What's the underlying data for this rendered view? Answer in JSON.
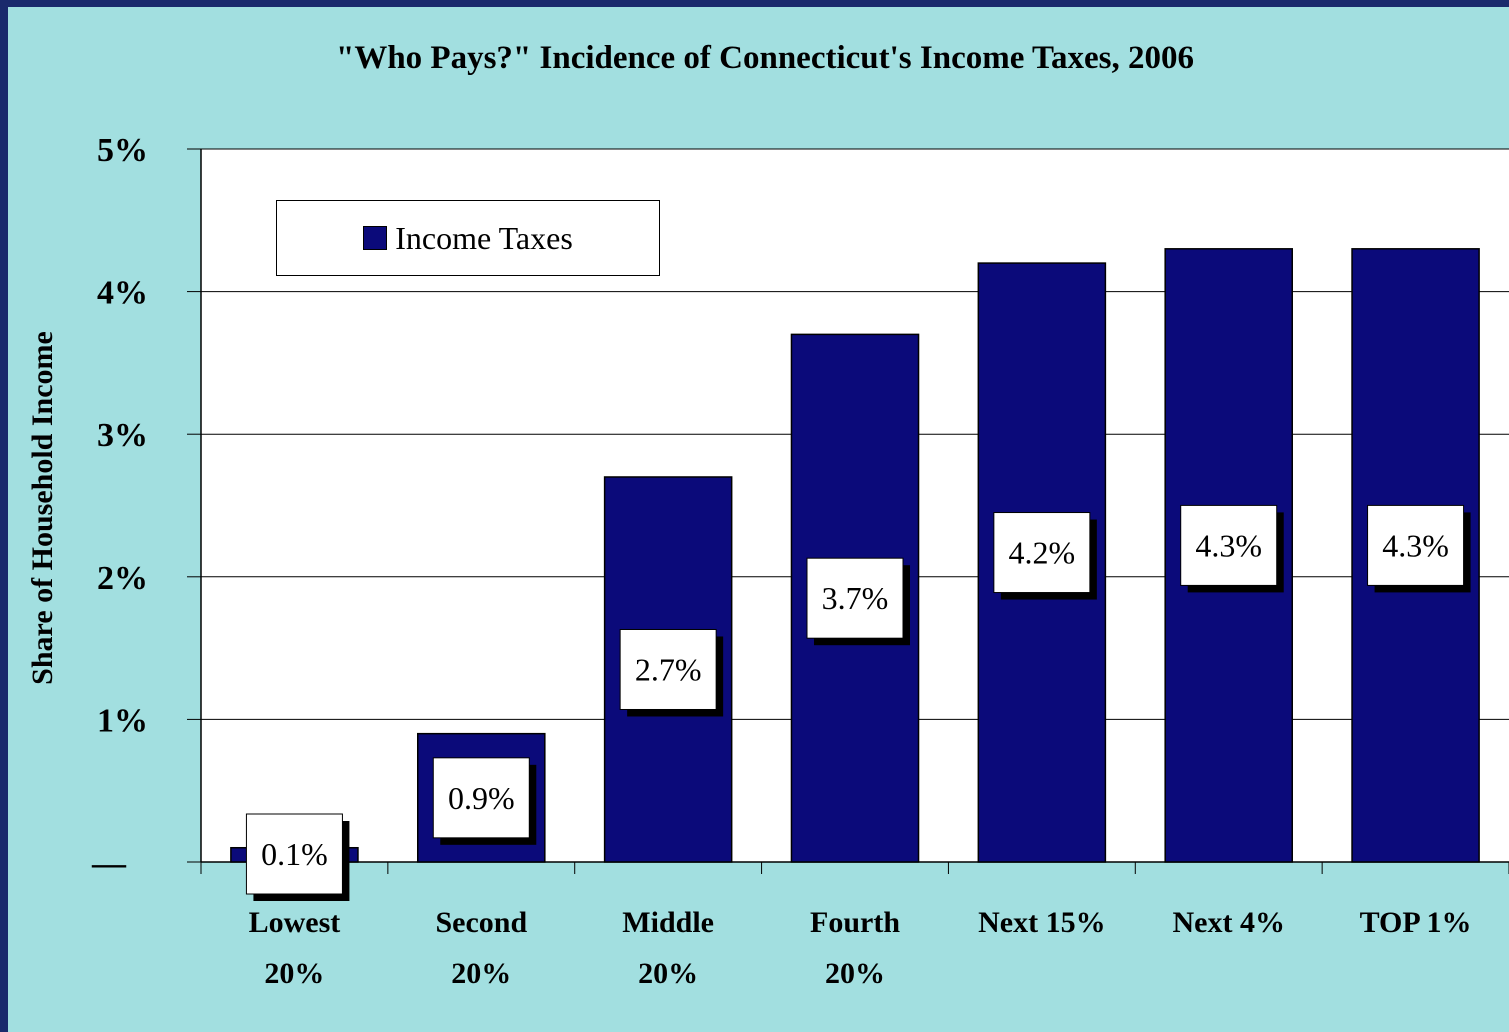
{
  "chart_data": {
    "type": "bar",
    "title": "\"Who Pays?\" Incidence of Connecticut's Income Taxes, 2006",
    "ylabel": "Share of Household Income",
    "xlabel": "",
    "categories": [
      [
        "Lowest",
        "20%"
      ],
      [
        "Second",
        "20%"
      ],
      [
        "Middle",
        "20%"
      ],
      [
        "Fourth",
        "20%"
      ],
      [
        "Next 15%"
      ],
      [
        "Next 4%"
      ],
      [
        "TOP 1%"
      ]
    ],
    "series": [
      {
        "name": "Income Taxes",
        "color": "#0b0a7a",
        "values": [
          0.1,
          0.9,
          2.7,
          3.7,
          4.2,
          4.3,
          4.3
        ],
        "labels": [
          "0.1%",
          "0.9%",
          "2.7%",
          "3.7%",
          "4.2%",
          "4.3%",
          "4.3%"
        ]
      }
    ],
    "ylim": [
      0,
      5
    ],
    "yticks": [
      0,
      1,
      2,
      3,
      4,
      5
    ],
    "ytick_labels": [
      "—",
      "1%",
      "2%",
      "3%",
      "4%",
      "5%"
    ],
    "grid": true,
    "legend_position": "top-left",
    "plot_background": "#ffffff",
    "background": "#a2dfe0"
  }
}
